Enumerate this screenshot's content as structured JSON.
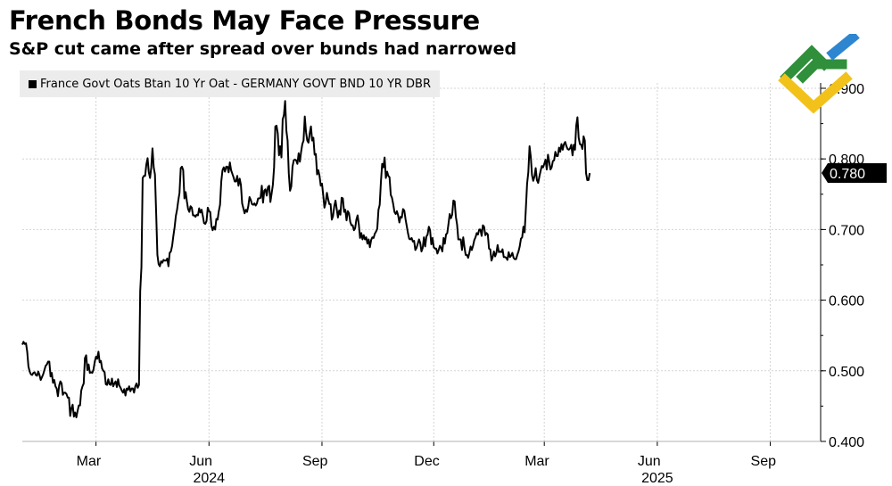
{
  "header": {
    "title": "French Bonds May Face Pressure",
    "subtitle": "S&P cut came after spread over bunds had narrowed"
  },
  "colors": {
    "line": "#000000",
    "grid": "#d4d4d4",
    "last_value_box": "#000000",
    "last_value_text": "#ffffff",
    "legend_bg": "#ececec",
    "logo_green": "#2f8f3b",
    "logo_blue": "#2f86d0",
    "logo_yellow": "#f2c21b"
  },
  "chart_data": {
    "type": "line",
    "title": "French Bonds May Face Pressure",
    "subtitle": "S&P cut came after spread over bunds had narrowed",
    "series": [
      {
        "name": "France Govt Oats Btan 10 Yr Oat - GERMANY GOVT BND 10 YR DBR",
        "x_start": "2024-01-01",
        "x_step_days": 1,
        "values": [
          0.537,
          0.541,
          0.538,
          0.539,
          0.527,
          0.506,
          0.499,
          0.495,
          0.494,
          0.497,
          0.498,
          0.494,
          0.493,
          0.499,
          0.494,
          0.487,
          0.491,
          0.495,
          0.501,
          0.507,
          0.509,
          0.513,
          0.513,
          0.492,
          0.497,
          0.483,
          0.487,
          0.478,
          0.475,
          0.464,
          0.479,
          0.485,
          0.482,
          0.466,
          0.469,
          0.469,
          0.467,
          0.462,
          0.462,
          0.436,
          0.447,
          0.452,
          0.435,
          0.441,
          0.434,
          0.443,
          0.451,
          0.451,
          0.472,
          0.478,
          0.482,
          0.518,
          0.522,
          0.501,
          0.509,
          0.497,
          0.498,
          0.497,
          0.502,
          0.513,
          0.52,
          0.517,
          0.527,
          0.512,
          0.514,
          0.503,
          0.5,
          0.498,
          0.481,
          0.48,
          0.488,
          0.481,
          0.48,
          0.489,
          0.478,
          0.482,
          0.485,
          0.477,
          0.488,
          0.479,
          0.476,
          0.472,
          0.469,
          0.474,
          0.465,
          0.475,
          0.473,
          0.478,
          0.471,
          0.475,
          0.475,
          0.469,
          0.478,
          0.482,
          0.476,
          0.48,
          0.613,
          0.647,
          0.773,
          0.776,
          0.776,
          0.792,
          0.801,
          0.781,
          0.773,
          0.788,
          0.815,
          0.788,
          0.778,
          0.723,
          0.664,
          0.651,
          0.648,
          0.655,
          0.653,
          0.657,
          0.656,
          0.656,
          0.659,
          0.648,
          0.667,
          0.669,
          0.677,
          0.691,
          0.703,
          0.719,
          0.728,
          0.741,
          0.752,
          0.787,
          0.789,
          0.784,
          0.744,
          0.753,
          0.74,
          0.729,
          0.725,
          0.733,
          0.731,
          0.72,
          0.72,
          0.718,
          0.721,
          0.72,
          0.73,
          0.724,
          0.728,
          0.719,
          0.709,
          0.708,
          0.712,
          0.731,
          0.726,
          0.725,
          0.705,
          0.699,
          0.704,
          0.7,
          0.715,
          0.714,
          0.726,
          0.735,
          0.768,
          0.784,
          0.788,
          0.782,
          0.789,
          0.789,
          0.781,
          0.795,
          0.784,
          0.779,
          0.774,
          0.768,
          0.768,
          0.776,
          0.762,
          0.772,
          0.763,
          0.737,
          0.73,
          0.723,
          0.728,
          0.725,
          0.733,
          0.746,
          0.742,
          0.736,
          0.735,
          0.737,
          0.734,
          0.737,
          0.744,
          0.744,
          0.745,
          0.762,
          0.738,
          0.755,
          0.757,
          0.748,
          0.76,
          0.762,
          0.739,
          0.751,
          0.763,
          0.788,
          0.846,
          0.847,
          0.836,
          0.805,
          0.818,
          0.802,
          0.856,
          0.862,
          0.882,
          0.84,
          0.826,
          0.779,
          0.755,
          0.761,
          0.789,
          0.798,
          0.799,
          0.798,
          0.793,
          0.808,
          0.796,
          0.81,
          0.821,
          0.826,
          0.86,
          0.838,
          0.826,
          0.823,
          0.836,
          0.846,
          0.826,
          0.83,
          0.806,
          0.807,
          0.778,
          0.784,
          0.776,
          0.762,
          0.765,
          0.749,
          0.731,
          0.738,
          0.752,
          0.743,
          0.736,
          0.736,
          0.714,
          0.719,
          0.733,
          0.741,
          0.729,
          0.717,
          0.727,
          0.721,
          0.745,
          0.744,
          0.725,
          0.728,
          0.713,
          0.726,
          0.723,
          0.711,
          0.706,
          0.706,
          0.699,
          0.702,
          0.714,
          0.72,
          0.707,
          0.688,
          0.695,
          0.686,
          0.692,
          0.686,
          0.689,
          0.68,
          0.686,
          0.675,
          0.685,
          0.689,
          0.688,
          0.694,
          0.697,
          0.701,
          0.728,
          0.735,
          0.768,
          0.793,
          0.788,
          0.802,
          0.773,
          0.782,
          0.776,
          0.774,
          0.749,
          0.745,
          0.736,
          0.725,
          0.722,
          0.726,
          0.72,
          0.71,
          0.718,
          0.717,
          0.729,
          0.727,
          0.715,
          0.705,
          0.695,
          0.687,
          0.686,
          0.688,
          0.683,
          0.684,
          0.671,
          0.674,
          0.68,
          0.686,
          0.681,
          0.669,
          0.674,
          0.689,
          0.676,
          0.69,
          0.693,
          0.704,
          0.699,
          0.679,
          0.688,
          0.675,
          0.673,
          0.673,
          0.666,
          0.671,
          0.677,
          0.674,
          0.669,
          0.688,
          0.68,
          0.693,
          0.695,
          0.708,
          0.722,
          0.716,
          0.721,
          0.741,
          0.74,
          0.718,
          0.707,
          0.686,
          0.686,
          0.686,
          0.671,
          0.689,
          0.675,
          0.664,
          0.664,
          0.66,
          0.667,
          0.676,
          0.671,
          0.677,
          0.685,
          0.689,
          0.695,
          0.693,
          0.7,
          0.7,
          0.691,
          0.706,
          0.704,
          0.692,
          0.695,
          0.693,
          0.673,
          0.672,
          0.656,
          0.661,
          0.669,
          0.662,
          0.667,
          0.678,
          0.668,
          0.669,
          0.668,
          0.672,
          0.661,
          0.661,
          0.66,
          0.657,
          0.668,
          0.661,
          0.663,
          0.667,
          0.66,
          0.658,
          0.658,
          0.664,
          0.669,
          0.676,
          0.687,
          0.689,
          0.704,
          0.696,
          0.73,
          0.765,
          0.781,
          0.818,
          0.803,
          0.777,
          0.769,
          0.775,
          0.787,
          0.77,
          0.766,
          0.775,
          0.783,
          0.79,
          0.788,
          0.793,
          0.799,
          0.785,
          0.806,
          0.796,
          0.785,
          0.788,
          0.797,
          0.798,
          0.81,
          0.804,
          0.804,
          0.816,
          0.81,
          0.821,
          0.813,
          0.821,
          0.824,
          0.818,
          0.814,
          0.813,
          0.815,
          0.82,
          0.805,
          0.82,
          0.813,
          0.847,
          0.859,
          0.83,
          0.821,
          0.82,
          0.814,
          0.832,
          0.826,
          0.78,
          0.77,
          0.77,
          0.78
        ]
      }
    ],
    "last_value": 0.78,
    "last_value_label": "0.780",
    "ylim": [
      0.4,
      0.9
    ],
    "yticks": [
      0.4,
      0.5,
      0.6,
      0.7,
      0.8,
      0.9
    ],
    "ytick_labels": [
      "0.400",
      "0.500",
      "0.600",
      "0.700",
      "0.800",
      "0.900"
    ],
    "xlim": [
      "2024-01-01",
      "2025-10-12"
    ],
    "xticks": [
      {
        "date": "2024-03-01",
        "label": "Mar"
      },
      {
        "date": "2024-06-01",
        "label": "Jun"
      },
      {
        "date": "2024-09-01",
        "label": "Sep"
      },
      {
        "date": "2024-12-01",
        "label": "Dec"
      },
      {
        "date": "2025-03-01",
        "label": "Mar"
      },
      {
        "date": "2025-06-01",
        "label": "Jun"
      },
      {
        "date": "2025-09-01",
        "label": "Sep"
      }
    ],
    "year_labels": [
      {
        "date": "2024-06-01",
        "label": "2024"
      },
      {
        "date": "2025-06-01",
        "label": "2025"
      }
    ],
    "xlabel": "",
    "ylabel": "",
    "grid": true,
    "legend_position": "top-left"
  }
}
